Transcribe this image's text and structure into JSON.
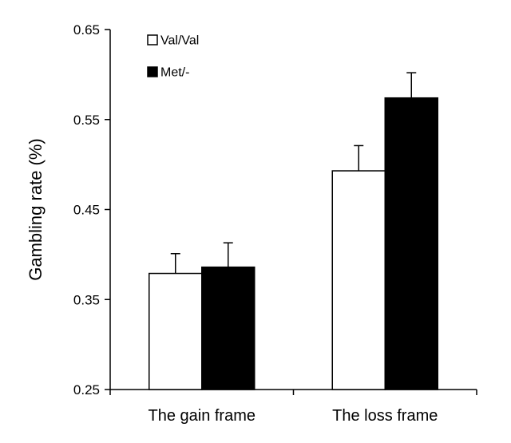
{
  "chart_data": {
    "type": "bar",
    "title": "",
    "xlabel": "",
    "ylabel": "Gambling rate (%)",
    "ylim": [
      0.25,
      0.65
    ],
    "yticks": [
      0.25,
      0.35,
      0.45,
      0.55,
      0.65
    ],
    "ytick_labels": [
      "0.25",
      "0.35",
      "0.45",
      "0.55",
      "0.65"
    ],
    "categories": [
      "The gain frame",
      "The loss frame"
    ],
    "series": [
      {
        "name": "Val/Val",
        "fill": "#ffffff",
        "stroke": "#000000",
        "values": [
          0.379,
          0.493
        ],
        "errors": [
          0.022,
          0.028
        ]
      },
      {
        "name": "Met/-",
        "fill": "#000000",
        "stroke": "#000000",
        "values": [
          0.386,
          0.574
        ],
        "errors": [
          0.027,
          0.028
        ]
      }
    ],
    "grid": false,
    "legend_position": "top-left"
  }
}
